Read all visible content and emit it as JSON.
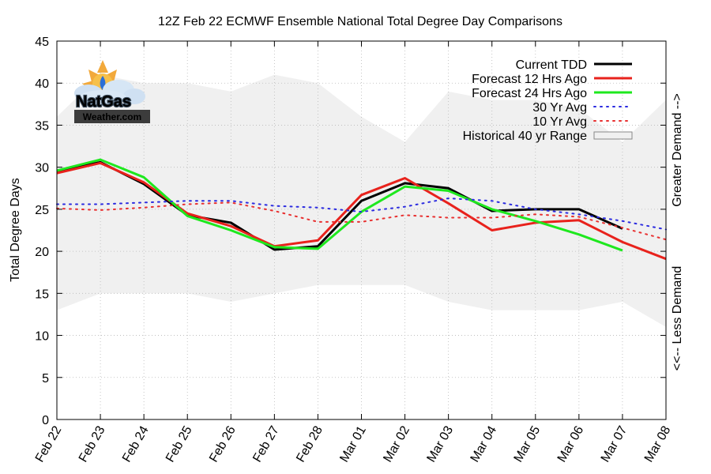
{
  "chart_data": {
    "type": "line",
    "title": "12Z Feb 22 ECMWF Ensemble National Total Degree Day Comparisons",
    "xlabel": "",
    "ylabel": "Total Degree Days",
    "right_label_top": "Greater Demand -->",
    "right_label_bottom": "<<-- Less Demand",
    "ylim": [
      0,
      45
    ],
    "yticks": [
      0,
      5,
      10,
      15,
      20,
      25,
      30,
      35,
      40,
      45
    ],
    "grid": true,
    "legend_position": "top-right",
    "categories": [
      "Feb 22",
      "Feb 23",
      "Feb 24",
      "Feb 25",
      "Feb 26",
      "Feb 27",
      "Feb 28",
      "Mar 01",
      "Mar 02",
      "Mar 03",
      "Mar 04",
      "Mar 05",
      "Mar 06",
      "Mar 07",
      "Mar 08"
    ],
    "range": {
      "name": "Historical 40 yr Range",
      "color": "#f0f0f0",
      "upper": [
        36,
        41,
        40,
        40,
        39,
        41,
        40,
        36,
        33,
        39,
        38,
        38,
        37,
        33,
        38
      ],
      "lower": [
        13,
        15,
        15,
        15,
        14,
        15,
        16,
        16,
        16,
        14,
        13,
        13,
        13,
        14,
        11
      ]
    },
    "series": [
      {
        "name": "Current TDD",
        "color": "#000000",
        "style": "solid",
        "values": [
          29.5,
          30.6,
          28.0,
          24.3,
          23.4,
          20.2,
          20.6,
          26.0,
          28.1,
          27.5,
          24.8,
          25.0,
          25.0,
          22.7,
          null
        ]
      },
      {
        "name": "Forecast 12 Hrs Ago",
        "color": "#e8221c",
        "style": "solid",
        "values": [
          29.3,
          30.5,
          28.2,
          24.5,
          23.0,
          20.6,
          21.3,
          26.7,
          28.7,
          25.7,
          22.5,
          23.4,
          23.7,
          21.1,
          19.1
        ]
      },
      {
        "name": "Forecast 24 Hrs Ago",
        "color": "#1ee81e",
        "style": "solid",
        "values": [
          29.6,
          30.9,
          28.8,
          24.2,
          22.5,
          20.5,
          20.3,
          24.7,
          27.7,
          27.2,
          25.0,
          23.6,
          22.0,
          20.1,
          null
        ]
      },
      {
        "name": "30 Yr Avg",
        "color": "#2b2be0",
        "style": "dotted",
        "values": [
          25.6,
          25.6,
          25.8,
          26.0,
          26.0,
          25.4,
          25.2,
          24.7,
          25.3,
          26.3,
          26.0,
          25.0,
          24.4,
          23.6,
          22.6
        ]
      },
      {
        "name": "10 Yr Avg",
        "color": "#e83030",
        "style": "dotted",
        "values": [
          25.1,
          24.9,
          25.2,
          25.6,
          25.8,
          24.8,
          23.5,
          23.5,
          24.3,
          24.0,
          24.0,
          24.4,
          24.1,
          22.8,
          21.4
        ]
      }
    ]
  },
  "logo": {
    "top_text": "NatGas",
    "bottom_text": "Weather.com"
  }
}
